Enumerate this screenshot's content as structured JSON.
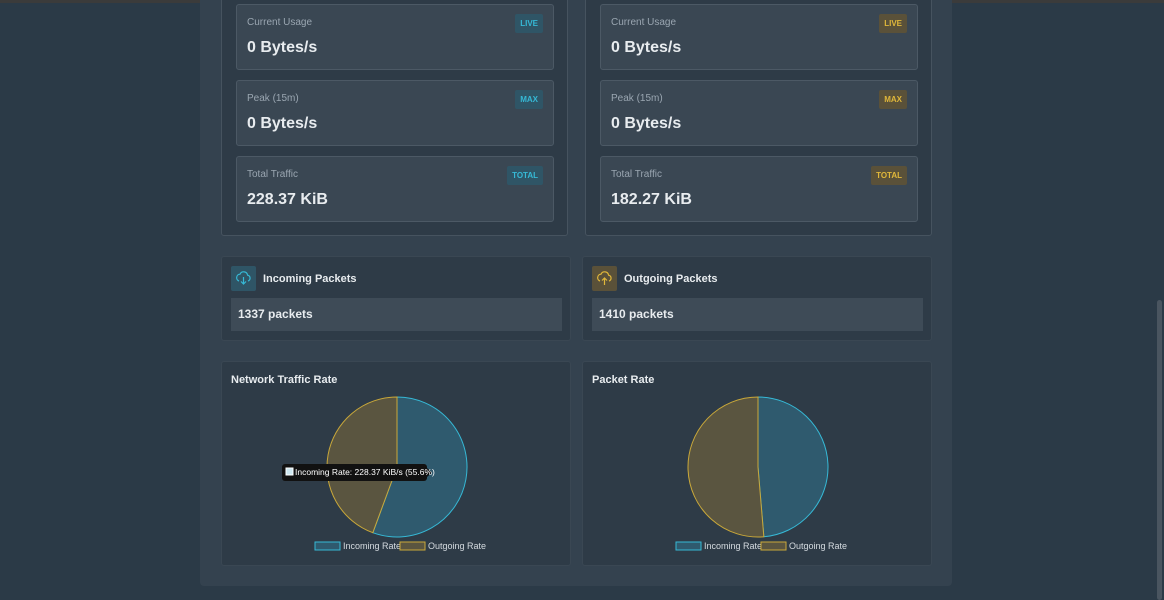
{
  "panels": [
    {
      "cards": [
        {
          "label": "Current Usage",
          "badge": "LIVE",
          "value": "0 Bytes/s"
        },
        {
          "label": "Peak (15m)",
          "badge": "MAX",
          "value": "0 Bytes/s"
        },
        {
          "label": "Total Traffic",
          "badge": "TOTAL",
          "value": "228.37 KiB"
        }
      ]
    },
    {
      "cards": [
        {
          "label": "Current Usage",
          "badge": "LIVE",
          "value": "0 Bytes/s"
        },
        {
          "label": "Peak (15m)",
          "badge": "MAX",
          "value": "0 Bytes/s"
        },
        {
          "label": "Total Traffic",
          "badge": "TOTAL",
          "value": "182.27 KiB"
        }
      ]
    }
  ],
  "packets": [
    {
      "title": "Incoming Packets",
      "value": "1337 packets"
    },
    {
      "title": "Outgoing Packets",
      "value": "1410 packets"
    }
  ],
  "chart_data": [
    {
      "type": "pie",
      "title": "Network Traffic Rate",
      "categories": [
        "Incoming Rate",
        "Outgoing Rate"
      ],
      "values": [
        228.37,
        182.27
      ],
      "colors": [
        "#36b9d6",
        "#c9a83a"
      ],
      "tooltip": "Incoming Rate: 228.37 KiB/s (55.6%)"
    },
    {
      "type": "pie",
      "title": "Packet Rate",
      "categories": [
        "Incoming Rate",
        "Outgoing Rate"
      ],
      "values": [
        1337,
        1410
      ],
      "colors": [
        "#36b9d6",
        "#c9a83a"
      ]
    }
  ]
}
